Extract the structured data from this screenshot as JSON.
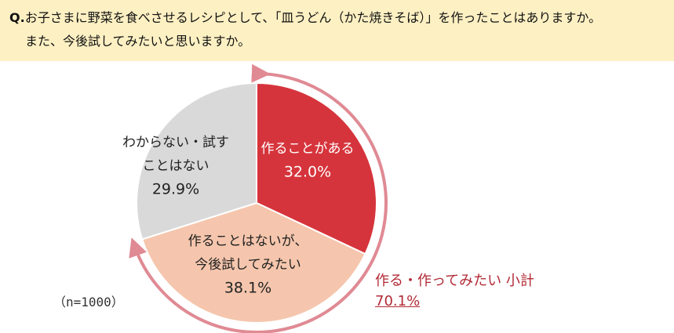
{
  "question": {
    "prefix": "Q.",
    "line1": "お子さまに野菜を食べさせるレシピとして、「皿うどん（かた焼きそば）」を作ったことはありますか。",
    "line2": "また、今後試してみたいと思いますか。"
  },
  "sample_size": "（n=1000）",
  "chart_data": {
    "type": "pie",
    "slices": [
      {
        "label_lines": [
          "作ることがある"
        ],
        "value": 32.0,
        "value_label": "32.0%",
        "color": "#d6343c",
        "text_color": "#ffffff"
      },
      {
        "label_lines": [
          "作ることはないが、",
          "今後試してみたい"
        ],
        "value": 38.1,
        "value_label": "38.1%",
        "color": "#f5c6ad",
        "text_color": "#222222"
      },
      {
        "label_lines": [
          "わからない・試す",
          "ことはない"
        ],
        "value": 29.9,
        "value_label": "29.9%",
        "color": "#d9d9d9",
        "text_color": "#222222"
      }
    ],
    "subtotal": {
      "label": "作る・作ってみたい 小計",
      "value": 70.1,
      "value_label": "70.1%"
    },
    "arrow_color": "#e08a94"
  }
}
